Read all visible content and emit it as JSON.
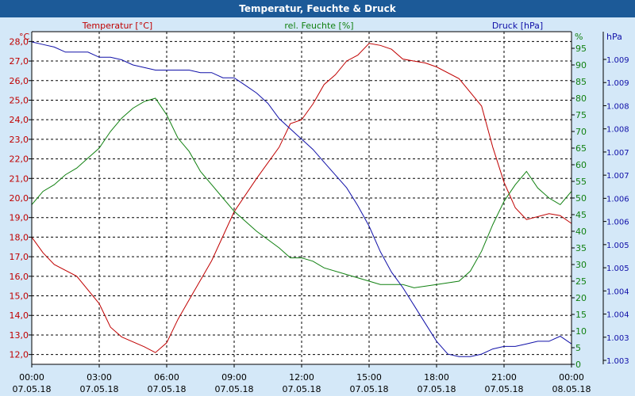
{
  "window": {
    "title": "Temperatur, Feuchte & Druck"
  },
  "colors": {
    "temperature": "#c00000",
    "humidity": "#108010",
    "pressure": "#1010a8",
    "axis": "#000000",
    "grid": "#000000"
  },
  "chart_data": {
    "type": "line",
    "title": "Temperatur, Feuchte & Druck",
    "grid": true,
    "legend_position": "top",
    "x_axis": {
      "range": [
        "07.05.18 00:00",
        "08.05.18 00:00"
      ],
      "range_hours": [
        0,
        24
      ],
      "ticks": [
        {
          "time": "00:00",
          "date": "07.05.18"
        },
        {
          "time": "03:00",
          "date": "07.05.18"
        },
        {
          "time": "06:00",
          "date": "07.05.18"
        },
        {
          "time": "09:00",
          "date": "07.05.18"
        },
        {
          "time": "12:00",
          "date": "07.05.18"
        },
        {
          "time": "15:00",
          "date": "07.05.18"
        },
        {
          "time": "18:00",
          "date": "07.05.18"
        },
        {
          "time": "21:00",
          "date": "07.05.18"
        },
        {
          "time": "00:00",
          "date": "08.05.18"
        }
      ]
    },
    "axes": {
      "temperature": {
        "unit": "°C",
        "label": "Temperatur [°C]",
        "range": [
          11.5,
          28.5
        ],
        "ticks": [
          "28,0",
          "27,0",
          "26,0",
          "25,0",
          "24,0",
          "23,0",
          "22,0",
          "21,0",
          "20,0",
          "19,0",
          "18,0",
          "17,0",
          "16,0",
          "15,0",
          "14,0",
          "13,0",
          "12,0"
        ]
      },
      "humidity": {
        "unit": "%",
        "label": "rel. Feuchte [%]",
        "range": [
          0,
          100
        ],
        "ticks": [
          "95",
          "90",
          "85",
          "80",
          "75",
          "70",
          "65",
          "60",
          "55",
          "50",
          "45",
          "40",
          "35",
          "30",
          "25",
          "20",
          "15",
          "10",
          "5",
          "0"
        ]
      },
      "pressure": {
        "unit": "hPa",
        "label": "Druck [hPa]",
        "range": [
          1003.0,
          1009.5
        ],
        "ticks": [
          "1.009",
          "1.009",
          "1.008",
          "1.008",
          "1.007",
          "1.007",
          "1.006",
          "1.006",
          "1.005",
          "1.005",
          "1.004",
          "1.004",
          "1.003",
          "1.003"
        ]
      }
    },
    "series": [
      {
        "name": "Temperatur [°C]",
        "axis": "temperature",
        "color": "#c00000",
        "hours": [
          0,
          0.5,
          1,
          2,
          3,
          3.5,
          4,
          5,
          5.5,
          6,
          6.5,
          7,
          8,
          9,
          10,
          11,
          11.5,
          12,
          12.5,
          13,
          13.5,
          14,
          14.5,
          15,
          15.5,
          16,
          16.5,
          17,
          17.5,
          18,
          19,
          20,
          20.5,
          21,
          21.5,
          22,
          23,
          23.5,
          24
        ],
        "values": [
          18.0,
          17.2,
          16.6,
          16.0,
          14.6,
          13.4,
          12.9,
          12.4,
          12.1,
          12.6,
          13.8,
          14.8,
          16.8,
          19.3,
          21.0,
          22.6,
          23.8,
          24.0,
          24.8,
          25.8,
          26.3,
          27.0,
          27.3,
          27.9,
          27.8,
          27.6,
          27.1,
          27.0,
          26.9,
          26.7,
          26.1,
          24.7,
          22.6,
          20.8,
          19.5,
          18.9,
          19.2,
          19.1,
          18.7
        ]
      },
      {
        "name": "rel. Feuchte [%]",
        "axis": "humidity",
        "color": "#108010",
        "hours": [
          0,
          0.5,
          1,
          1.5,
          2,
          2.5,
          3,
          3.5,
          4,
          4.5,
          5,
          5.5,
          6,
          6.5,
          7,
          7.5,
          8,
          8.5,
          9,
          10,
          11,
          11.5,
          12,
          12.5,
          13,
          14,
          15,
          15.5,
          16,
          16.5,
          17,
          18,
          19,
          19.5,
          20,
          20.5,
          21,
          21.5,
          22,
          22.5,
          23,
          23.5,
          24
        ],
        "values": [
          48,
          52,
          54,
          57,
          59,
          62,
          65,
          70,
          74,
          77,
          79,
          80,
          75,
          68,
          64,
          58,
          54,
          50,
          46,
          40,
          35,
          32,
          32,
          31,
          29,
          27,
          25,
          24,
          24,
          24,
          23,
          24,
          25,
          28,
          34,
          42,
          49,
          54,
          58,
          53,
          50,
          48,
          52
        ]
      },
      {
        "name": "Druck [hPa]",
        "axis": "pressure",
        "color": "#1010a8",
        "hours": [
          0,
          0.5,
          1,
          1.5,
          2,
          2.5,
          3,
          3.5,
          4,
          4.5,
          5,
          5.5,
          6,
          6.5,
          7,
          7.5,
          8,
          8.5,
          9,
          9.5,
          10,
          10.5,
          11,
          11.5,
          12,
          12.5,
          13,
          13.5,
          14,
          14.5,
          15,
          15.5,
          16,
          16.5,
          17,
          17.5,
          18,
          18.5,
          19,
          19.5,
          20,
          20.5,
          21,
          21.5,
          22,
          22.5,
          23,
          23.5,
          24
        ],
        "values": [
          1009.3,
          1009.25,
          1009.2,
          1009.1,
          1009.1,
          1009.1,
          1009.0,
          1009.0,
          1008.95,
          1008.85,
          1008.8,
          1008.75,
          1008.75,
          1008.75,
          1008.75,
          1008.7,
          1008.7,
          1008.6,
          1008.6,
          1008.45,
          1008.3,
          1008.1,
          1007.8,
          1007.6,
          1007.4,
          1007.2,
          1006.95,
          1006.7,
          1006.45,
          1006.1,
          1005.7,
          1005.2,
          1004.8,
          1004.5,
          1004.15,
          1003.8,
          1003.45,
          1003.2,
          1003.15,
          1003.15,
          1003.2,
          1003.3,
          1003.35,
          1003.35,
          1003.4,
          1003.45,
          1003.45,
          1003.55,
          1003.4
        ]
      }
    ]
  }
}
